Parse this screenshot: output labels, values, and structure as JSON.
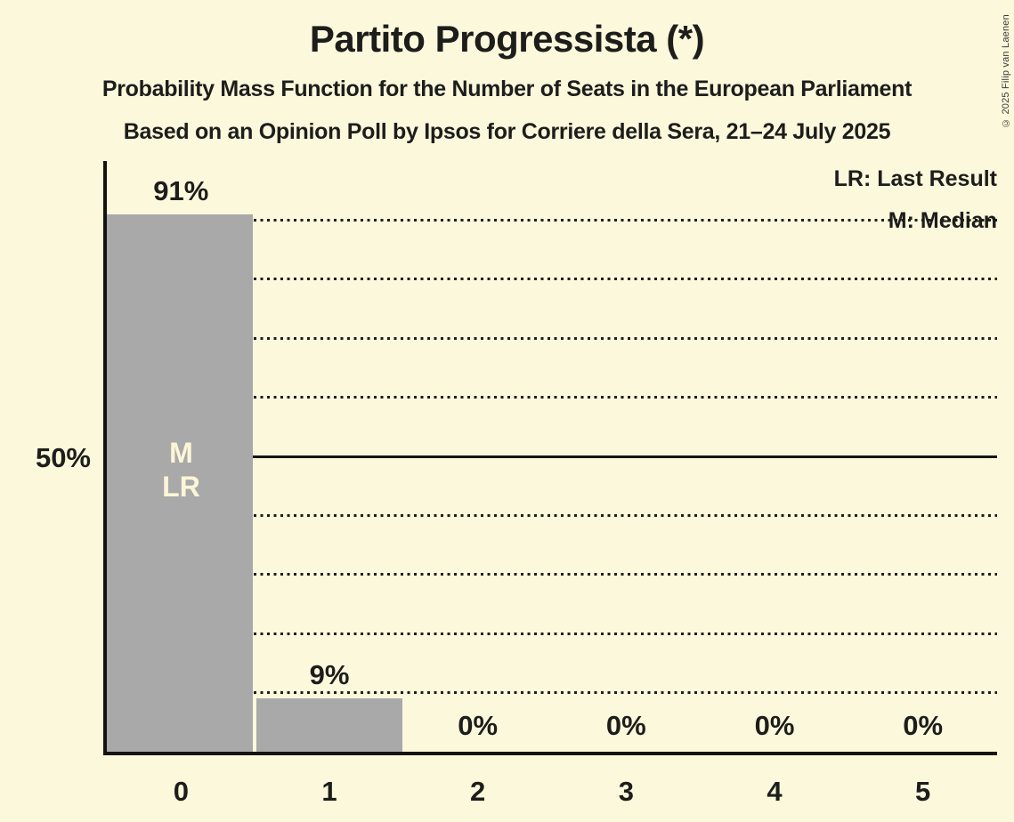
{
  "header": {
    "title": "Partito Progressista (*)",
    "subtitle": "Probability Mass Function for the Number of Seats in the European Parliament",
    "source_line": "Based on an Opinion Poll by Ipsos for Corriere della Sera, 21–24 July 2025"
  },
  "copyright": "© 2025 Filip van Laenen",
  "legend": {
    "lr": "LR: Last Result",
    "m": "M: Median"
  },
  "y_axis": {
    "label_50": "50%"
  },
  "colors": {
    "background": "#FCF8DC",
    "bar": "#A9A9A9",
    "text": "#1D1D1B",
    "bar_annotation_text": "#FCF6D8"
  },
  "chart_data": {
    "type": "bar",
    "title": "Partito Progressista (*)",
    "categories": [
      "0",
      "1",
      "2",
      "3",
      "4",
      "5"
    ],
    "values": [
      91,
      9,
      0,
      0,
      0,
      0
    ],
    "value_labels": [
      "91%",
      "9%",
      "0%",
      "0%",
      "0%",
      "0%"
    ],
    "xlabel": "Number of Seats",
    "ylabel": "Probability Mass",
    "ylim": [
      0,
      100
    ],
    "ytick_labels_shown": [
      "50%"
    ],
    "gridlines_pct": [
      10,
      20,
      30,
      40,
      50,
      60,
      70,
      80,
      90
    ],
    "solid_gridline_pct": 50,
    "grid": "dotted horizontal lines every 10%, solid line at 50%",
    "legend_position": "top-right",
    "bar_annotations": [
      {
        "bar": 0,
        "lines": [
          "M",
          "LR"
        ]
      }
    ]
  }
}
